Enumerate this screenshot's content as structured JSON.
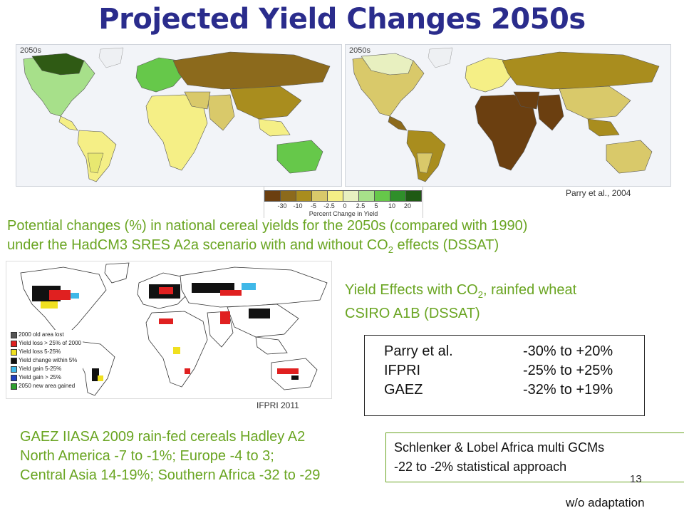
{
  "title": "Projected Yield Changes 2050s",
  "map1": {
    "label": "2050s"
  },
  "map2": {
    "label": "2050s"
  },
  "scale": {
    "colors": [
      "#6b3f10",
      "#8c6a1c",
      "#a98d1e",
      "#d9c96a",
      "#f5ef86",
      "#e8f0c0",
      "#a7e08a",
      "#66c84a",
      "#2f8f2a",
      "#1f5a14"
    ],
    "ticks": [
      "-30",
      "-10",
      "-5",
      "-2.5",
      "0",
      "2.5",
      "5",
      "10",
      "20"
    ],
    "title": "Percent Change in Yield"
  },
  "credit_parry": "Parry et al., 2004",
  "caption": {
    "line1": "Potential changes (%) in national cereal yields for the 2050s (compared with 1990)",
    "line2_pre": "under the HadCM3 SRES A2a scenario with and without CO",
    "line2_sub": "2",
    "line2_post": " effects (DSSAT)"
  },
  "ifpri_map": {
    "legend": [
      {
        "label": "2000 old area lost",
        "color": "#555555"
      },
      {
        "label": "Yield loss > 25% of 2000",
        "color": "#e02020"
      },
      {
        "label": "Yield loss 5-25%",
        "color": "#f0e020"
      },
      {
        "label": "Yield change within 5%",
        "color": "#111111"
      },
      {
        "label": "Yield gain 5-25%",
        "color": "#40b8e8"
      },
      {
        "label": "Yield gain > 25%",
        "color": "#2040c0"
      },
      {
        "label": "2050 new area gained",
        "color": "#30a030"
      }
    ]
  },
  "credit_ifpri": "IFPRI 2011",
  "yield_effects": {
    "line1_pre": "Yield Effects with CO",
    "line1_sub": "2",
    "line1_post": ", rainfed wheat",
    "line2": "CSIRO A1B (DSSAT)"
  },
  "ranges": [
    {
      "source": "Parry et al.",
      "range": "-30% to +20%"
    },
    {
      "source": "IFPRI",
      "range": "-25% to +25%"
    },
    {
      "source": "GAEZ",
      "range": "-32% to +19%"
    }
  ],
  "gaez": {
    "line1": "GAEZ IIASA 2009 rain-fed cereals Hadley A2",
    "line2": "North America -7 to -1%; Europe -4 to 3;",
    "line3": "Central Asia 14-19%; Southern Africa -32 to -29"
  },
  "schlenker": {
    "line1": "Schlenker & Lobel Africa multi GCMs",
    "line2": "-22 to -2% statistical approach"
  },
  "page_number": "13",
  "footer": "w/o adaptation"
}
